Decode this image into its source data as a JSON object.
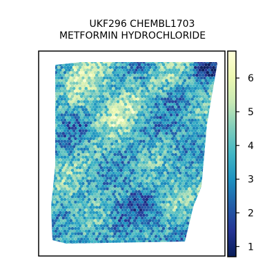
{
  "chart_data": {
    "type": "heatmap",
    "title_lines": [
      "UKF296 CHEMBL1703",
      "METFORMIN HYDROCHLORIDE"
    ],
    "xlabel": "",
    "ylabel": "",
    "grid": false,
    "colorbar": {
      "cmap": "YlGnBu_r",
      "range": [
        0.7,
        6.8
      ],
      "ticks": [
        1,
        2,
        3,
        4,
        5,
        6
      ]
    },
    "colormap_stops": [
      "#081d58",
      "#253494",
      "#225ea8",
      "#1d91c0",
      "#41b6c4",
      "#7fcdbb",
      "#c7e9b4",
      "#edf8b1",
      "#ffffd9"
    ],
    "value_summary": {
      "typical": 3.6,
      "min": 0.8,
      "max": 6.6
    }
  }
}
